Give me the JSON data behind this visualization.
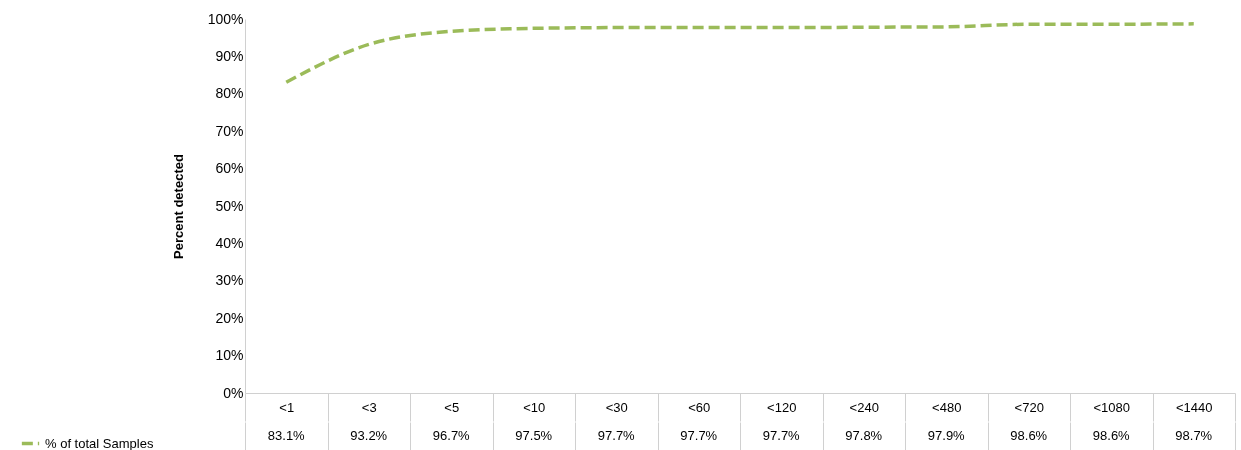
{
  "chart_data": {
    "type": "line",
    "ylabel": "Percent detected",
    "categories": [
      "<1",
      "<3",
      "<5",
      "<10",
      "<30",
      "<60",
      "<120",
      "<240",
      "<480",
      "<720",
      "<1080",
      "<1440"
    ],
    "series": [
      {
        "name": "% of total Samples",
        "color": "#9bbb59",
        "values": [
          83.1,
          93.2,
          96.7,
          97.5,
          97.7,
          97.7,
          97.7,
          97.8,
          97.9,
          98.6,
          98.6,
          98.7
        ],
        "value_labels": [
          "83.1%",
          "93.2%",
          "96.7%",
          "97.5%",
          "97.7%",
          "97.7%",
          "97.7%",
          "97.8%",
          "97.9%",
          "98.6%",
          "98.6%",
          "98.7%"
        ]
      }
    ],
    "ylim": [
      0,
      100
    ],
    "yticks": [
      {
        "value": 0,
        "label": "0%"
      },
      {
        "value": 10,
        "label": "10%"
      },
      {
        "value": 20,
        "label": "20%"
      },
      {
        "value": 30,
        "label": "30%"
      },
      {
        "value": 40,
        "label": "40%"
      },
      {
        "value": 50,
        "label": "50%"
      },
      {
        "value": 60,
        "label": "60%"
      },
      {
        "value": 70,
        "label": "70%"
      },
      {
        "value": 80,
        "label": "80%"
      },
      {
        "value": 90,
        "label": "90%"
      },
      {
        "value": 100,
        "label": "100%"
      }
    ],
    "grid": false,
    "legend": "bottom left",
    "line_style": "dashed",
    "marker": "none"
  }
}
